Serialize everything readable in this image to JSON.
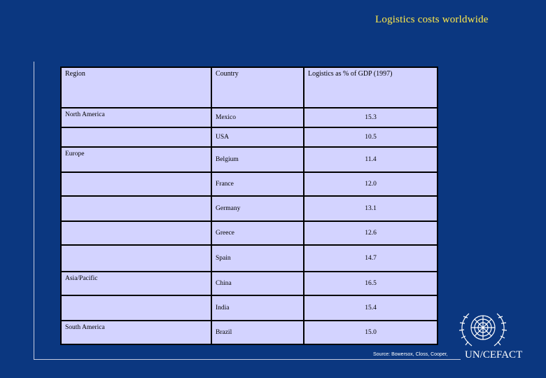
{
  "slide": {
    "title": "Logistics costs worldwide",
    "source": "Source: Bowersox, Closs, Cooper,",
    "organization": "UN/CEFACT",
    "emblem_icon": "un-emblem-icon",
    "colors": {
      "background": "#0b3780",
      "title": "#ffe94a",
      "cell": "#d3d3ff",
      "border": "#000000"
    }
  },
  "table": {
    "headers": [
      "Region",
      "Country",
      "Logistics as % of GDP (1997)"
    ],
    "rows": [
      {
        "region": "North America",
        "country": "Mexico",
        "value": "15.3"
      },
      {
        "region": "",
        "country": "USA",
        "value": "10.5"
      },
      {
        "region": "Europe",
        "country": "Belgium",
        "value": "11.4"
      },
      {
        "region": "",
        "country": "France",
        "value": "12.0"
      },
      {
        "region": "",
        "country": "Germany",
        "value": "13.1"
      },
      {
        "region": "",
        "country": "Greece",
        "value": "12.6"
      },
      {
        "region": "",
        "country": "Spain",
        "value": "14.7"
      },
      {
        "region": "Asia/Pacific",
        "country": "China",
        "value": "16.5"
      },
      {
        "region": "",
        "country": "India",
        "value": "15.4"
      },
      {
        "region": "South America",
        "country": "Brazil",
        "value": "15.0"
      }
    ]
  }
}
